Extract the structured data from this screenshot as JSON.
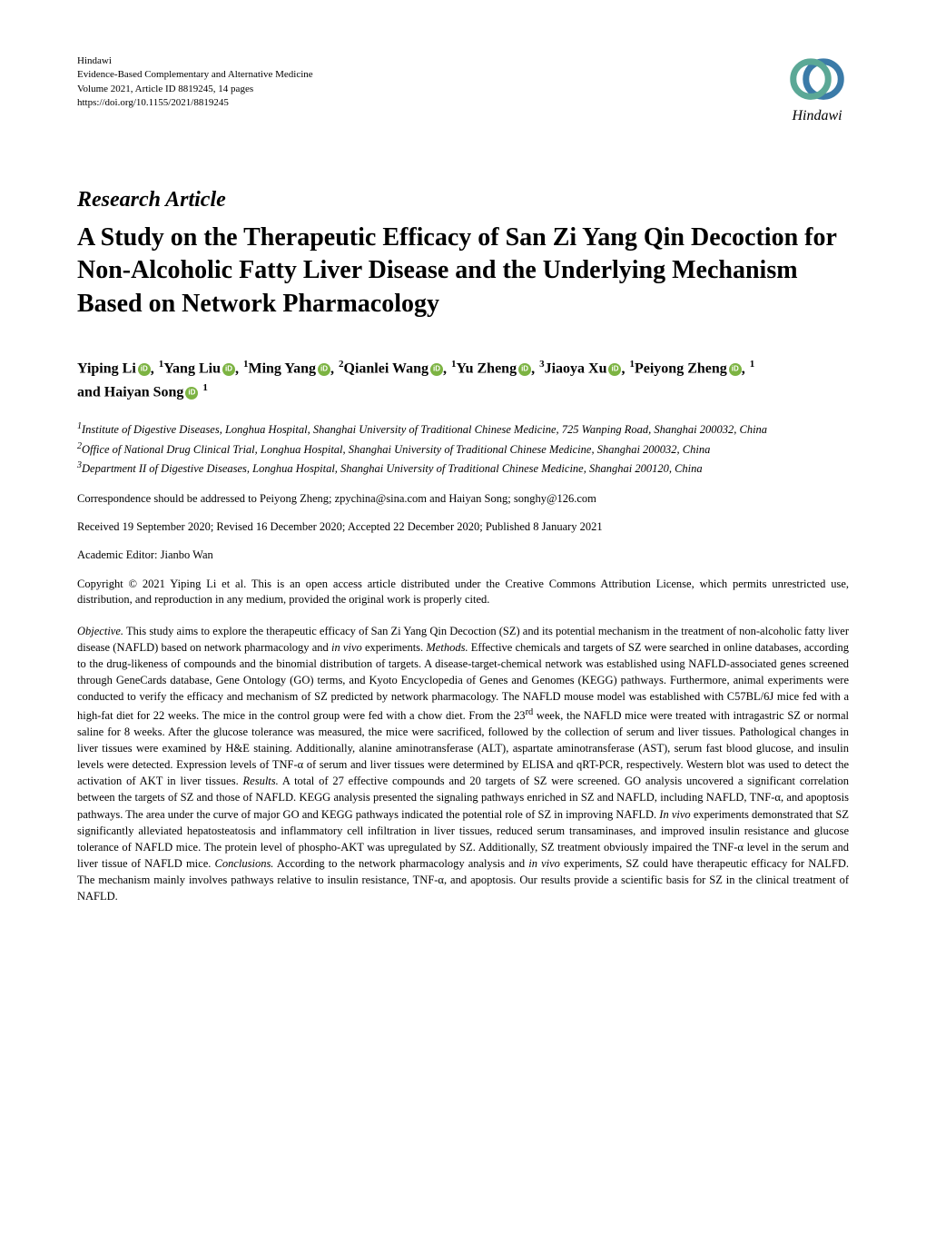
{
  "publisher": {
    "name": "Hindawi",
    "journal": "Evidence-Based Complementary and Alternative Medicine",
    "volume": "Volume 2021, Article ID 8819245, 14 pages",
    "doi": "https://doi.org/10.1155/2021/8819245"
  },
  "logo": {
    "name": "Hindawi",
    "front_color": "#5ba896",
    "back_color": "#3b7ba8"
  },
  "article_type": "Research Article",
  "title": "A Study on the Therapeutic Efficacy of San Zi Yang Qin Decoction for Non-Alcoholic Fatty Liver Disease and the Underlying Mechanism Based on Network Pharmacology",
  "authors": [
    {
      "name": "Yiping Li",
      "affil": "1",
      "sep": ","
    },
    {
      "name": "Yang Liu",
      "affil": "1",
      "sep": ","
    },
    {
      "name": "Ming Yang",
      "affil": "2",
      "sep": ","
    },
    {
      "name": "Qianlei Wang",
      "affil": "1",
      "sep": ","
    },
    {
      "name": "Yu Zheng",
      "affil": "3",
      "sep": ","
    },
    {
      "name": "Jiaoya Xu",
      "affil": "1",
      "sep": ","
    },
    {
      "name": "Peiyong Zheng",
      "affil": "1",
      "sep": ","
    },
    {
      "name": "and Haiyan Song",
      "affil": "1",
      "sep": ""
    }
  ],
  "affiliations": [
    {
      "num": "1",
      "text": "Institute of Digestive Diseases, Longhua Hospital, Shanghai University of Traditional Chinese Medicine, 725 Wanping Road, Shanghai 200032, China"
    },
    {
      "num": "2",
      "text": "Office of National Drug Clinical Trial, Longhua Hospital, Shanghai University of Traditional Chinese Medicine, Shanghai 200032, China"
    },
    {
      "num": "3",
      "text": "Department II of Digestive Diseases, Longhua Hospital, Shanghai University of Traditional Chinese Medicine, Shanghai 200120, China"
    }
  ],
  "correspondence": "Correspondence should be addressed to Peiyong Zheng; zpychina@sina.com and Haiyan Song; songhy@126.com",
  "dates": "Received 19 September 2020; Revised 16 December 2020; Accepted 22 December 2020; Published 8 January 2021",
  "editor": "Academic Editor: Jianbo Wan",
  "copyright": "Copyright © 2021 Yiping Li et al. This is an open access article distributed under the Creative Commons Attribution License, which permits unrestricted use, distribution, and reproduction in any medium, provided the original work is properly cited.",
  "abstract": {
    "objective_h": "Objective.",
    "objective": " This study aims to explore the therapeutic efficacy of San Zi Yang Qin Decoction (SZ) and its potential mechanism in the treatment of non-alcoholic fatty liver disease (NAFLD) based on network pharmacology and ",
    "objective_i1": "in vivo",
    "objective_2": " experiments. ",
    "methods_h": "Methods.",
    "methods": " Effective chemicals and targets of SZ were searched in online databases, according to the drug-likeness of compounds and the binomial distribution of targets. A disease-target-chemical network was established using NAFLD-associated genes screened through GeneCards database, Gene Ontology (GO) terms, and Kyoto Encyclopedia of Genes and Genomes (KEGG) pathways. Furthermore, animal experiments were conducted to verify the efficacy and mechanism of SZ predicted by network pharmacology. The NAFLD mouse model was established with C57BL/6J mice fed with a high-fat diet for 22 weeks. The mice in the control group were fed with a chow diet. From the 23",
    "methods_sup": "rd",
    "methods_2": " week, the NAFLD mice were treated with intragastric SZ or normal saline for 8 weeks. After the glucose tolerance was measured, the mice were sacrificed, followed by the collection of serum and liver tissues. Pathological changes in liver tissues were examined by H&E staining. Additionally, alanine aminotransferase (ALT), aspartate aminotransferase (AST), serum fast blood glucose, and insulin levels were detected. Expression levels of TNF-α of serum and liver tissues were determined by ELISA and qRT-PCR, respectively. Western blot was used to detect the activation of AKT in liver tissues. ",
    "results_h": "Results.",
    "results": " A total of 27 effective compounds and 20 targets of SZ were screened. GO analysis uncovered a significant correlation between the targets of SZ and those of NAFLD. KEGG analysis presented the signaling pathways enriched in SZ and NAFLD, including NAFLD, TNF-α, and apoptosis pathways. The area under the curve of major GO and KEGG pathways indicated the potential role of SZ in improving NAFLD. ",
    "results_i1": "In vivo",
    "results_2": " experiments demonstrated that SZ significantly alleviated hepatosteatosis and inflammatory cell infiltration in liver tissues, reduced serum transaminases, and improved insulin resistance and glucose tolerance of NAFLD mice. The protein level of phospho-AKT was upregulated by SZ. Additionally, SZ treatment obviously impaired the TNF-α level in the serum and liver tissue of NAFLD mice. ",
    "conclusions_h": "Conclusions.",
    "conclusions": " According to the network pharmacology analysis and ",
    "conclusions_i1": "in vivo",
    "conclusions_2": " experiments, SZ could have therapeutic efficacy for NALFD. The mechanism mainly involves pathways relative to insulin resistance, TNF-α, and apoptosis. Our results provide a scientific basis for SZ in the clinical treatment of NAFLD."
  },
  "colors": {
    "text": "#000000",
    "background": "#ffffff",
    "orcid": "#7cb342"
  }
}
